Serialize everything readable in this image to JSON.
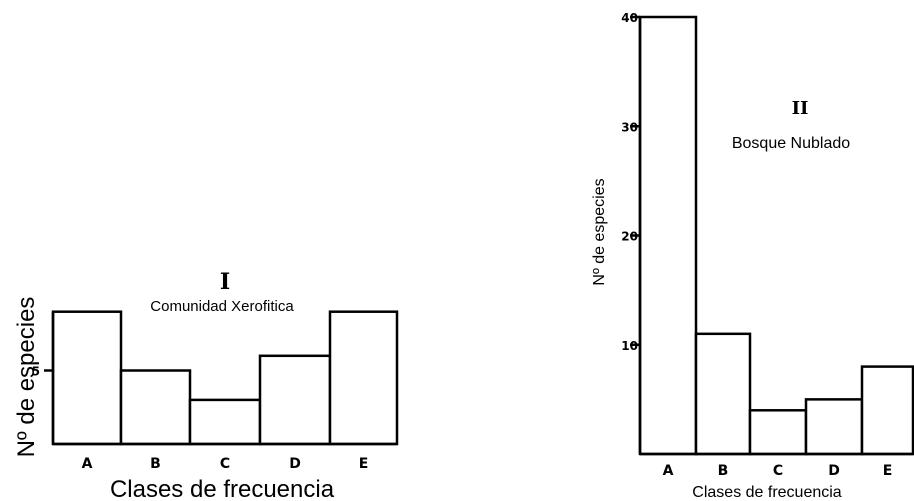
{
  "chart_data": [
    {
      "type": "bar",
      "numeral": "I",
      "title": "Comunidad Xerofitica",
      "xlabel": "Clases de frecuencia",
      "ylabel": "Nº de especies",
      "categories": [
        "A",
        "B",
        "C",
        "D",
        "E"
      ],
      "values": [
        9,
        5,
        3,
        6,
        9
      ],
      "yticks": [
        5
      ],
      "ylim": [
        0,
        10
      ],
      "grid": false
    },
    {
      "type": "bar",
      "numeral": "II",
      "title": "Bosque Nublado",
      "xlabel": "Clases de frecuencia",
      "ylabel": "Nº de especies",
      "categories": [
        "A",
        "B",
        "C",
        "D",
        "E"
      ],
      "values": [
        40,
        11,
        4,
        5,
        8
      ],
      "yticks": [
        10,
        20,
        30,
        40
      ],
      "ylim": [
        0,
        40
      ],
      "grid": false
    }
  ]
}
